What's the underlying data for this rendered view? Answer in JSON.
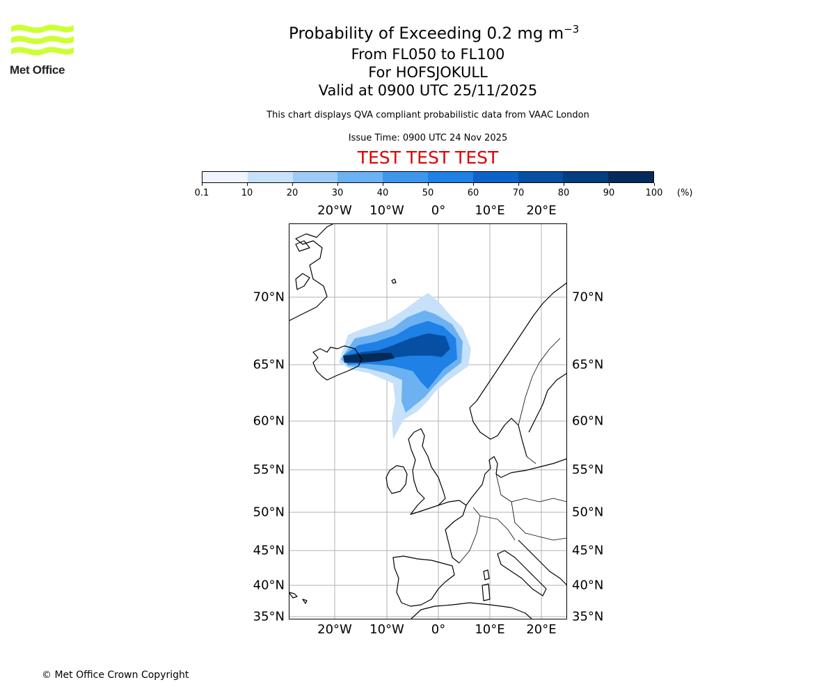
{
  "logo": {
    "text": "Met Office",
    "wave_color": "#ccff33"
  },
  "header": {
    "title_main": "Probability of Exceeding 0.2 mg m",
    "title_superscript": "−3",
    "levels": "From FL050 to FL100",
    "location": "For HOFSJOKULL",
    "valid": "Valid at 0900 UTC 25/11/2025",
    "disclaimer": "This chart displays QVA compliant probabilistic data from VAAC London",
    "issue_time": "Issue Time: 0900 UTC 24 Nov 2025",
    "test_banner": "TEST TEST TEST",
    "test_color": "#e00000"
  },
  "colorbar": {
    "ticks": [
      "0.1",
      "10",
      "20",
      "30",
      "40",
      "50",
      "60",
      "70",
      "80",
      "90",
      "100"
    ],
    "unit": "(%)",
    "colors": [
      "#eef5fd",
      "#c6e1f9",
      "#9ecaf6",
      "#6cb1f1",
      "#3e97ec",
      "#1f80e5",
      "#0c64c8",
      "#064fa3",
      "#043d80",
      "#052b5a"
    ]
  },
  "map": {
    "lon_labels": [
      "20°W",
      "10°W",
      "0°",
      "10°E",
      "20°E"
    ],
    "lat_labels": [
      "70°N",
      "65°N",
      "60°N",
      "55°N",
      "50°N",
      "45°N",
      "40°N",
      "35°N"
    ],
    "grid_color": "#b0b0b0",
    "plume_levels": [
      {
        "probability_band": "10-20",
        "color": "#c6e1f9"
      },
      {
        "probability_band": "30-40",
        "color": "#6cb1f1"
      },
      {
        "probability_band": "50-60",
        "color": "#1f80e5"
      },
      {
        "probability_band": "70-80",
        "color": "#064fa3"
      },
      {
        "probability_band": "90-100",
        "color": "#052b5a"
      }
    ]
  },
  "footer": {
    "copyright": "© Met Office Crown Copyright"
  }
}
